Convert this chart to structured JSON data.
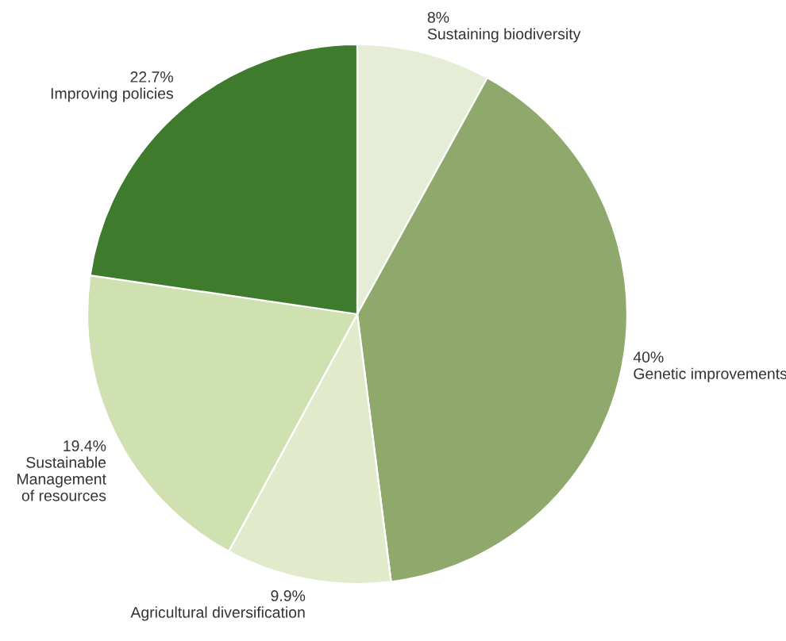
{
  "chart_data": {
    "type": "pie",
    "categories": [
      "Sustaining biodiversity",
      "Genetic improvements",
      "Agricultural diversification",
      "Sustainable\nManagement\nof resources",
      "Improving policies"
    ],
    "values": [
      8,
      40,
      9.9,
      19.4,
      22.7
    ],
    "value_labels": [
      "8%",
      "40%",
      "9.9%",
      "19.4%",
      "22.7%"
    ],
    "colors": [
      "#e5edd6",
      "#8fa96d",
      "#e1ebcc",
      "#d0e1b1",
      "#3f7b2d"
    ],
    "legend": false
  }
}
